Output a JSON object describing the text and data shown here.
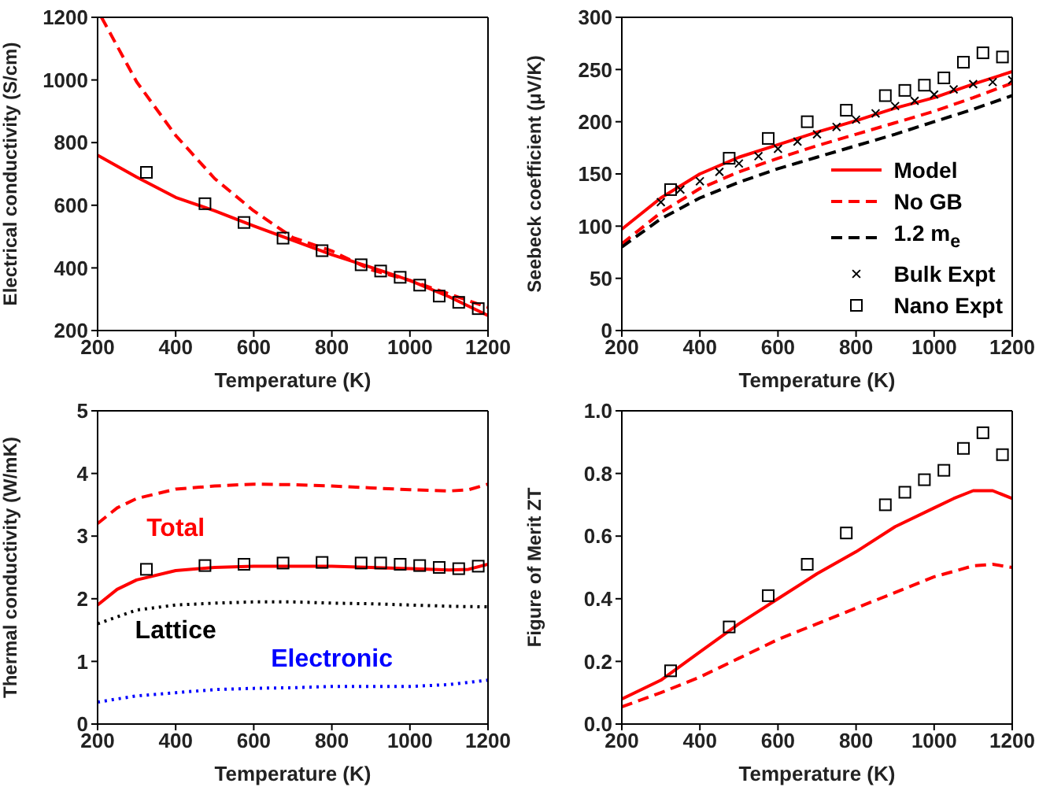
{
  "chart_data": [
    {
      "type": "line",
      "xlabel": "Temperature (K)",
      "ylabel": "Electrical conductivity (S/cm)",
      "xlim": [
        200,
        1200
      ],
      "xticks": [
        200,
        400,
        600,
        800,
        1000,
        1200
      ],
      "ylim": [
        200,
        1200
      ],
      "yticks": [
        200,
        400,
        600,
        800,
        1000,
        1200
      ],
      "series": [
        {
          "type": "line",
          "color": "#ff0000",
          "line_style": "solid",
          "x": [
            200,
            300,
            400,
            500,
            600,
            700,
            800,
            900,
            1000,
            1100,
            1200
          ],
          "values": [
            760,
            690,
            625,
            582,
            534,
            488,
            442,
            402,
            360,
            308,
            248
          ]
        },
        {
          "type": "line",
          "color": "#ff0000",
          "line_style": "dashed",
          "x": [
            210,
            300,
            400,
            500,
            600,
            700,
            800,
            900,
            1000,
            1100,
            1200
          ],
          "values": [
            1200,
            994,
            823,
            685,
            582,
            497,
            454,
            394,
            360,
            317,
            274
          ]
        },
        {
          "type": "scatter",
          "color": "#000000",
          "marker": "square",
          "x": [
            325,
            475,
            575,
            675,
            775,
            875,
            925,
            975,
            1025,
            1075,
            1125,
            1175
          ],
          "values": [
            705,
            605,
            545,
            495,
            455,
            410,
            390,
            370,
            345,
            310,
            290,
            270
          ]
        }
      ]
    },
    {
      "type": "line",
      "xlabel": "Temperature (K)",
      "ylabel": "Seebeck coefficient (μV/K)",
      "xlim": [
        200,
        1200
      ],
      "xticks": [
        200,
        400,
        600,
        800,
        1000,
        1200
      ],
      "ylim": [
        0,
        300
      ],
      "yticks": [
        0,
        50,
        100,
        150,
        200,
        250,
        300
      ],
      "legend": "bottom right",
      "series": [
        {
          "type": "line",
          "name": "Model",
          "color": "#ff0000",
          "line_style": "solid",
          "x": [
            200,
            300,
            400,
            500,
            600,
            700,
            800,
            900,
            1000,
            1100,
            1200
          ],
          "values": [
            97,
            127,
            150,
            166,
            178,
            190,
            201,
            213,
            223,
            236,
            248
          ]
        },
        {
          "type": "line",
          "name": "No GB",
          "color": "#ff0000",
          "line_style": "dashed",
          "x": [
            200,
            300,
            400,
            500,
            600,
            700,
            800,
            900,
            1000,
            1100,
            1200
          ],
          "values": [
            83,
            113,
            136,
            152,
            165,
            177,
            188,
            199,
            210,
            223,
            237
          ]
        },
        {
          "type": "line",
          "name": "1.2 m$_{e}$",
          "color": "#000000",
          "line_style": "dashed",
          "x": [
            200,
            300,
            400,
            500,
            600,
            700,
            800,
            900,
            1000,
            1100,
            1200
          ],
          "values": [
            80,
            107,
            127,
            142,
            155,
            166,
            177,
            188,
            200,
            212,
            225
          ]
        },
        {
          "type": "scatter",
          "name": "Bulk Expt",
          "color": "#000000",
          "marker": "cross",
          "x": [
            300,
            350,
            400,
            450,
            500,
            550,
            600,
            650,
            700,
            750,
            800,
            850,
            900,
            950,
            1000,
            1050,
            1100,
            1150,
            1200
          ],
          "values": [
            123,
            135,
            143,
            152,
            160,
            167,
            174,
            181,
            188,
            195,
            202,
            208,
            215,
            220,
            226,
            231,
            236,
            238,
            240
          ]
        },
        {
          "type": "scatter",
          "name": "Nano Expt",
          "color": "#000000",
          "marker": "square",
          "x": [
            325,
            475,
            575,
            675,
            775,
            875,
            925,
            975,
            1025,
            1075,
            1125,
            1175
          ],
          "values": [
            135,
            165,
            184,
            200,
            211,
            225,
            230,
            235,
            242,
            257,
            266,
            262
          ]
        }
      ]
    },
    {
      "type": "line",
      "xlabel": "Temperature (K)",
      "ylabel": "Thermal conductivity (W/mK)",
      "xlim": [
        200,
        1200
      ],
      "xticks": [
        200,
        400,
        600,
        800,
        1000,
        1200
      ],
      "ylim": [
        0,
        5
      ],
      "yticks": [
        0,
        1,
        2,
        3,
        4,
        5
      ],
      "series": [
        {
          "type": "line",
          "color": "#ff0000",
          "line_style": "dashed",
          "x": [
            200,
            250,
            300,
            400,
            500,
            600,
            700,
            800,
            900,
            1000,
            1100,
            1150,
            1200
          ],
          "values": [
            3.2,
            3.45,
            3.6,
            3.75,
            3.8,
            3.83,
            3.82,
            3.8,
            3.77,
            3.74,
            3.72,
            3.74,
            3.83
          ]
        },
        {
          "type": "line",
          "name": "Total",
          "color": "#ff0000",
          "line_style": "solid",
          "x": [
            200,
            250,
            300,
            400,
            500,
            600,
            700,
            800,
            900,
            1000,
            1100,
            1150,
            1200
          ],
          "values": [
            1.9,
            2.15,
            2.3,
            2.45,
            2.5,
            2.52,
            2.52,
            2.52,
            2.5,
            2.48,
            2.46,
            2.47,
            2.55
          ]
        },
        {
          "type": "line",
          "name": "Lattice",
          "color": "#000000",
          "line_style": "dotted",
          "x": [
            200,
            300,
            400,
            500,
            600,
            700,
            800,
            900,
            1000,
            1100,
            1200
          ],
          "values": [
            1.6,
            1.82,
            1.9,
            1.93,
            1.95,
            1.95,
            1.93,
            1.92,
            1.9,
            1.88,
            1.87
          ]
        },
        {
          "type": "line",
          "name": "Electronic",
          "color": "#0000ff",
          "line_style": "dotted",
          "x": [
            200,
            300,
            400,
            500,
            600,
            700,
            800,
            900,
            1000,
            1100,
            1200
          ],
          "values": [
            0.35,
            0.45,
            0.5,
            0.55,
            0.57,
            0.58,
            0.6,
            0.6,
            0.6,
            0.63,
            0.7
          ]
        },
        {
          "type": "scatter",
          "color": "#000000",
          "marker": "square",
          "x": [
            325,
            475,
            575,
            675,
            775,
            875,
            925,
            975,
            1025,
            1075,
            1125,
            1175
          ],
          "values": [
            2.47,
            2.53,
            2.55,
            2.57,
            2.58,
            2.57,
            2.57,
            2.55,
            2.53,
            2.5,
            2.48,
            2.52
          ]
        }
      ]
    },
    {
      "type": "line",
      "xlabel": "Temperature (K)",
      "ylabel": "Figure of Merit ZT",
      "xlim": [
        200,
        1200
      ],
      "xticks": [
        200,
        400,
        600,
        800,
        1000,
        1200
      ],
      "ylim": [
        0,
        1
      ],
      "yticks": [
        {
          "value": 0,
          "label": "0.0"
        },
        {
          "value": 0.2,
          "label": "0.2"
        },
        {
          "value": 0.4,
          "label": "0.4"
        },
        {
          "value": 0.6,
          "label": "0.6"
        },
        {
          "value": 0.8,
          "label": "0.8"
        },
        {
          "value": 1,
          "label": "1.0"
        }
      ],
      "series": [
        {
          "type": "line",
          "color": "#ff0000",
          "line_style": "solid",
          "x": [
            200,
            300,
            400,
            500,
            600,
            700,
            800,
            900,
            1000,
            1050,
            1100,
            1150,
            1200
          ],
          "values": [
            0.08,
            0.14,
            0.23,
            0.32,
            0.4,
            0.48,
            0.55,
            0.63,
            0.69,
            0.72,
            0.745,
            0.745,
            0.72
          ]
        },
        {
          "type": "line",
          "color": "#ff0000",
          "line_style": "dashed",
          "x": [
            200,
            300,
            400,
            500,
            600,
            700,
            800,
            900,
            1000,
            1100,
            1150,
            1200
          ],
          "values": [
            0.055,
            0.1,
            0.15,
            0.21,
            0.27,
            0.32,
            0.37,
            0.42,
            0.47,
            0.505,
            0.51,
            0.5
          ]
        },
        {
          "type": "scatter",
          "color": "#000000",
          "marker": "square",
          "x": [
            325,
            475,
            575,
            675,
            775,
            875,
            925,
            975,
            1025,
            1075,
            1125,
            1175
          ],
          "values": [
            0.17,
            0.31,
            0.41,
            0.51,
            0.61,
            0.7,
            0.74,
            0.78,
            0.81,
            0.88,
            0.93,
            0.86
          ]
        }
      ]
    }
  ]
}
